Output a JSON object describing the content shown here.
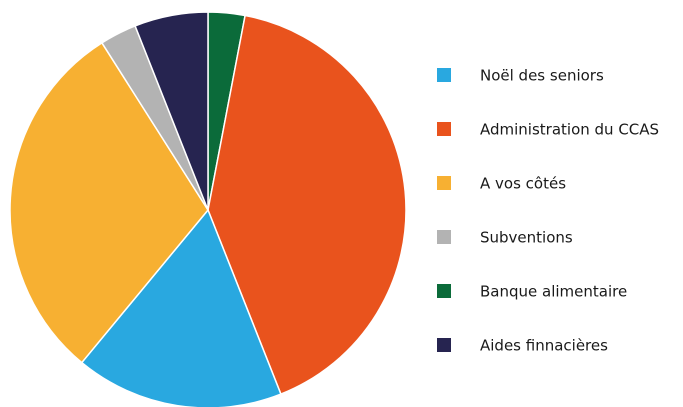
{
  "chart_data": {
    "type": "pie",
    "categories": [
      "Noël des seniors",
      "Administration du CCAS",
      "A vos côtés",
      "Subventions",
      "Banque alimentaire",
      "Aides finnacières"
    ],
    "values": [
      17,
      41,
      30,
      3,
      3,
      6
    ],
    "colors": [
      "#29a8e0",
      "#e9531d",
      "#f7b032",
      "#b3b3b3",
      "#0b6b3a",
      "#262450"
    ],
    "legend": "right"
  }
}
